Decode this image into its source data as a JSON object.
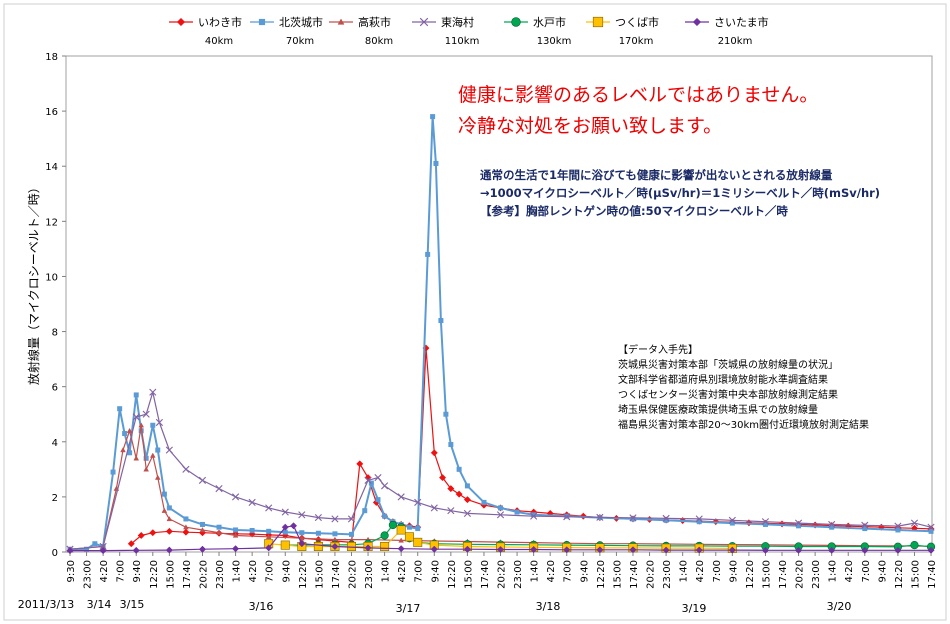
{
  "chart_data": {
    "type": "line",
    "ylabel": "放射線量（マイクロシーベルト／時）",
    "ylim": [
      0,
      18
    ],
    "yticks": [
      "0",
      "2",
      "4",
      "6",
      "8",
      "10",
      "12",
      "14",
      "16",
      "18"
    ],
    "xticks": [
      "9:30",
      "23:00",
      "4:20",
      "7:00",
      "9:40",
      "12:20",
      "15:00",
      "17:40",
      "20:20",
      "23:00",
      "1:40",
      "4:20",
      "7:00",
      "9:40",
      "12:20",
      "15:00",
      "17:40",
      "20:20",
      "23:00",
      "1:40",
      "4:20",
      "7:00",
      "9:40",
      "12:20",
      "15:00",
      "17:40",
      "20:20",
      "23:00",
      "1:40",
      "4:20",
      "7:00",
      "9:40",
      "12:20",
      "15:00",
      "17:40",
      "20:20",
      "23:00",
      "1:40",
      "4:20",
      "7:00",
      "9:40",
      "12:20",
      "15:00",
      "17:40",
      "20:20",
      "23:00",
      "1:40",
      "4:20",
      "7:00",
      "9:40",
      "12:20",
      "15:00",
      "17:40"
    ],
    "date_labels": [
      "2011/3/13",
      "3/14",
      "3/15",
      "3/16",
      "3/17",
      "3/18",
      "3/19",
      "3/20"
    ],
    "legend_position": "top",
    "series": [
      {
        "name": "いわき市",
        "distance": "40km",
        "color": "#ee1111",
        "marker": "diamond",
        "points": [
          [
            3.7,
            0.3
          ],
          [
            4.3,
            0.6
          ],
          [
            5,
            0.7
          ],
          [
            6,
            0.75
          ],
          [
            7,
            0.72
          ],
          [
            8,
            0.7
          ],
          [
            9,
            0.68
          ],
          [
            10,
            0.66
          ],
          [
            11,
            0.65
          ],
          [
            12,
            0.62
          ],
          [
            13,
            0.6
          ],
          [
            14,
            0.5
          ],
          [
            15,
            0.45
          ],
          [
            16,
            0.4
          ],
          [
            17,
            0.35
          ],
          [
            17.5,
            3.2
          ],
          [
            18,
            2.7
          ],
          [
            18.5,
            1.8
          ],
          [
            19,
            1.3
          ],
          [
            19.5,
            1.1
          ],
          [
            20,
            1.0
          ],
          [
            20.5,
            0.95
          ],
          [
            21,
            0.9
          ],
          [
            21.5,
            7.4
          ],
          [
            22,
            3.6
          ],
          [
            22.5,
            2.7
          ],
          [
            23,
            2.3
          ],
          [
            23.5,
            2.1
          ],
          [
            24,
            1.9
          ],
          [
            25,
            1.7
          ],
          [
            26,
            1.6
          ],
          [
            27,
            1.5
          ],
          [
            28,
            1.45
          ],
          [
            29,
            1.4
          ],
          [
            30,
            1.35
          ],
          [
            31,
            1.3
          ],
          [
            32,
            1.25
          ],
          [
            33,
            1.22
          ],
          [
            34,
            1.2
          ],
          [
            35,
            1.18
          ],
          [
            36,
            1.16
          ],
          [
            37,
            1.14
          ],
          [
            38,
            1.12
          ],
          [
            39,
            1.1
          ],
          [
            40,
            1.08
          ],
          [
            41,
            1.06
          ],
          [
            42,
            1.04
          ],
          [
            43,
            1.02
          ],
          [
            44,
            1.0
          ],
          [
            45,
            0.98
          ],
          [
            46,
            0.96
          ],
          [
            47,
            0.94
          ],
          [
            48,
            0.92
          ],
          [
            49,
            0.9
          ],
          [
            50,
            0.88
          ],
          [
            51,
            0.86
          ],
          [
            52,
            0.84
          ]
        ]
      },
      {
        "name": "北茨城市",
        "distance": "70km",
        "color": "#5b9bd5",
        "marker": "square",
        "points": [
          [
            0,
            0.1
          ],
          [
            1,
            0.1
          ],
          [
            1.5,
            0.3
          ],
          [
            2,
            0.2
          ],
          [
            2.6,
            2.9
          ],
          [
            3.0,
            5.2
          ],
          [
            3.3,
            4.3
          ],
          [
            3.6,
            3.6
          ],
          [
            4.0,
            5.7
          ],
          [
            4.3,
            4.4
          ],
          [
            4.6,
            3.4
          ],
          [
            5.0,
            4.6
          ],
          [
            5.3,
            3.7
          ],
          [
            5.7,
            2.1
          ],
          [
            6,
            1.6
          ],
          [
            7,
            1.2
          ],
          [
            8,
            1.0
          ],
          [
            9,
            0.9
          ],
          [
            10,
            0.8
          ],
          [
            11,
            0.78
          ],
          [
            12,
            0.75
          ],
          [
            13,
            0.72
          ],
          [
            14,
            0.7
          ],
          [
            15,
            0.68
          ],
          [
            16,
            0.66
          ],
          [
            17,
            0.64
          ],
          [
            17.8,
            1.5
          ],
          [
            18.2,
            2.5
          ],
          [
            18.6,
            1.9
          ],
          [
            19,
            1.3
          ],
          [
            19.5,
            1.1
          ],
          [
            20,
            1.0
          ],
          [
            20.5,
            0.9
          ],
          [
            21,
            0.85
          ],
          [
            21.6,
            10.8
          ],
          [
            21.9,
            15.8
          ],
          [
            22.1,
            14.1
          ],
          [
            22.4,
            8.4
          ],
          [
            22.7,
            5.0
          ],
          [
            23,
            3.9
          ],
          [
            23.5,
            3.0
          ],
          [
            24,
            2.4
          ],
          [
            25,
            1.8
          ],
          [
            26,
            1.6
          ],
          [
            27,
            1.45
          ],
          [
            28,
            1.35
          ],
          [
            30,
            1.3
          ],
          [
            32,
            1.25
          ],
          [
            34,
            1.2
          ],
          [
            36,
            1.15
          ],
          [
            38,
            1.1
          ],
          [
            40,
            1.05
          ],
          [
            42,
            1.0
          ],
          [
            44,
            0.95
          ],
          [
            46,
            0.9
          ],
          [
            48,
            0.85
          ],
          [
            50,
            0.8
          ],
          [
            52,
            0.75
          ]
        ]
      },
      {
        "name": "高萩市",
        "distance": "80km",
        "color": "#c0504d",
        "marker": "triangle",
        "points": [
          [
            0,
            0.1
          ],
          [
            2,
            0.2
          ],
          [
            2.8,
            2.3
          ],
          [
            3.2,
            3.7
          ],
          [
            3.6,
            4.4
          ],
          [
            4.0,
            3.4
          ],
          [
            4.3,
            4.6
          ],
          [
            4.6,
            3.0
          ],
          [
            5.0,
            3.5
          ],
          [
            5.3,
            2.7
          ],
          [
            5.7,
            1.5
          ],
          [
            6,
            1.2
          ],
          [
            7,
            0.9
          ],
          [
            8,
            0.8
          ],
          [
            9,
            0.7
          ],
          [
            10,
            0.6
          ],
          [
            12,
            0.55
          ],
          [
            14,
            0.5
          ],
          [
            16,
            0.45
          ],
          [
            18,
            0.45
          ],
          [
            20,
            0.42
          ],
          [
            22,
            0.4
          ],
          [
            24,
            0.38
          ],
          [
            26,
            0.36
          ],
          [
            28,
            0.34
          ],
          [
            30,
            0.32
          ],
          [
            32,
            0.3
          ],
          [
            34,
            0.3
          ],
          [
            36,
            0.29
          ],
          [
            38,
            0.28
          ],
          [
            40,
            0.27
          ],
          [
            42,
            0.26
          ],
          [
            44,
            0.25
          ],
          [
            46,
            0.24
          ],
          [
            48,
            0.23
          ],
          [
            50,
            0.22
          ],
          [
            52,
            0.21
          ]
        ]
      },
      {
        "name": "東海村",
        "distance": "110km",
        "color": "#8064a2",
        "marker": "cross",
        "points": [
          [
            0,
            0.1
          ],
          [
            2,
            0.2
          ],
          [
            4,
            4.9
          ],
          [
            4.6,
            5.0
          ],
          [
            5.0,
            5.8
          ],
          [
            5.4,
            4.7
          ],
          [
            6,
            3.7
          ],
          [
            7,
            3.0
          ],
          [
            8,
            2.6
          ],
          [
            9,
            2.3
          ],
          [
            10,
            2.0
          ],
          [
            11,
            1.8
          ],
          [
            12,
            1.6
          ],
          [
            13,
            1.45
          ],
          [
            14,
            1.35
          ],
          [
            15,
            1.25
          ],
          [
            16,
            1.2
          ],
          [
            17,
            1.2
          ],
          [
            18,
            2.6
          ],
          [
            18.6,
            2.7
          ],
          [
            19,
            2.4
          ],
          [
            20,
            2.0
          ],
          [
            21,
            1.8
          ],
          [
            22,
            1.6
          ],
          [
            23,
            1.5
          ],
          [
            24,
            1.4
          ],
          [
            26,
            1.35
          ],
          [
            28,
            1.3
          ],
          [
            30,
            1.28
          ],
          [
            32,
            1.26
          ],
          [
            34,
            1.24
          ],
          [
            36,
            1.22
          ],
          [
            38,
            1.2
          ],
          [
            40,
            1.15
          ],
          [
            42,
            1.1
          ],
          [
            44,
            1.05
          ],
          [
            46,
            1.0
          ],
          [
            48,
            0.97
          ],
          [
            50,
            0.94
          ],
          [
            51,
            1.05
          ],
          [
            52,
            0.9
          ]
        ]
      },
      {
        "name": "水戸市",
        "distance": "130km",
        "color": "#00a651",
        "marker": "circle",
        "points": [
          [
            13,
            0.25
          ],
          [
            14,
            0.25
          ],
          [
            15,
            0.26
          ],
          [
            16,
            0.26
          ],
          [
            17,
            0.26
          ],
          [
            18,
            0.3
          ],
          [
            19,
            0.6
          ],
          [
            19.5,
            0.98
          ],
          [
            20,
            0.9
          ],
          [
            20.5,
            0.5
          ],
          [
            21,
            0.35
          ],
          [
            22,
            0.3
          ],
          [
            24,
            0.28
          ],
          [
            26,
            0.27
          ],
          [
            28,
            0.26
          ],
          [
            30,
            0.25
          ],
          [
            32,
            0.24
          ],
          [
            34,
            0.23
          ],
          [
            36,
            0.22
          ],
          [
            38,
            0.22
          ],
          [
            40,
            0.21
          ],
          [
            42,
            0.21
          ],
          [
            44,
            0.2
          ],
          [
            46,
            0.2
          ],
          [
            48,
            0.2
          ],
          [
            50,
            0.19
          ],
          [
            51,
            0.25
          ],
          [
            52,
            0.19
          ]
        ]
      },
      {
        "name": "つくば市",
        "distance": "170km",
        "color": "#ffc000",
        "marker": "square",
        "points": [
          [
            12,
            0.3
          ],
          [
            13,
            0.25
          ],
          [
            14,
            0.2
          ],
          [
            15,
            0.2
          ],
          [
            16,
            0.2
          ],
          [
            17,
            0.2
          ],
          [
            18,
            0.2
          ],
          [
            19,
            0.2
          ],
          [
            20,
            0.8
          ],
          [
            20.5,
            0.55
          ],
          [
            21,
            0.35
          ],
          [
            22,
            0.25
          ],
          [
            24,
            0.2
          ],
          [
            26,
            0.18
          ],
          [
            28,
            0.17
          ],
          [
            30,
            0.16
          ],
          [
            32,
            0.15
          ],
          [
            34,
            0.15
          ],
          [
            36,
            0.14
          ],
          [
            38,
            0.14
          ],
          [
            40,
            0.13
          ]
        ]
      },
      {
        "name": "さいたま市",
        "distance": "210km",
        "color": "#7030a0",
        "marker": "diamond",
        "points": [
          [
            0,
            0.05
          ],
          [
            2,
            0.05
          ],
          [
            4,
            0.06
          ],
          [
            6,
            0.07
          ],
          [
            8,
            0.1
          ],
          [
            10,
            0.12
          ],
          [
            12,
            0.15
          ],
          [
            13,
            0.9
          ],
          [
            13.5,
            0.95
          ],
          [
            14,
            0.3
          ],
          [
            16,
            0.2
          ],
          [
            18,
            0.15
          ],
          [
            20,
            0.12
          ],
          [
            22,
            0.1
          ],
          [
            24,
            0.1
          ],
          [
            26,
            0.09
          ],
          [
            28,
            0.09
          ],
          [
            30,
            0.08
          ],
          [
            32,
            0.08
          ],
          [
            34,
            0.08
          ],
          [
            36,
            0.07
          ],
          [
            38,
            0.07
          ],
          [
            40,
            0.07
          ],
          [
            42,
            0.06
          ],
          [
            44,
            0.06
          ],
          [
            46,
            0.06
          ],
          [
            48,
            0.06
          ],
          [
            50,
            0.06
          ],
          [
            52,
            0.06
          ]
        ]
      }
    ]
  },
  "annotations": {
    "warning_line1": "健康に影響のあるレベルではありません。",
    "warning_line2": "冷静な対処をお願い致します。",
    "note_line1": "通常の生活で1年間に浴びても健康に影響が出ないとされる放射線量",
    "note_line2": "→1000マイクロシーベルト／時(μSv/hr)＝1ミリシーベルト／時(mSv/hr)",
    "note_line3": "【参考】胸部レントゲン時の値:50マイクロシーベルト／時",
    "sources_title": "【データ入手先】",
    "sources": [
      "茨城県災害対策本部「茨城県の放射線量の状況」",
      "文部科学省都道府県別環境放射能水準調査結果",
      "つくばセンター災害対策中央本部放射線測定結果",
      "埼玉県保健医療政策提供埼玉県での放射線量",
      "福島県災害対策本部20～30km圏付近環境放射測定結果"
    ]
  },
  "colors": {
    "plot_border": "#a0a0a0",
    "grid": "#d9d9d9"
  }
}
